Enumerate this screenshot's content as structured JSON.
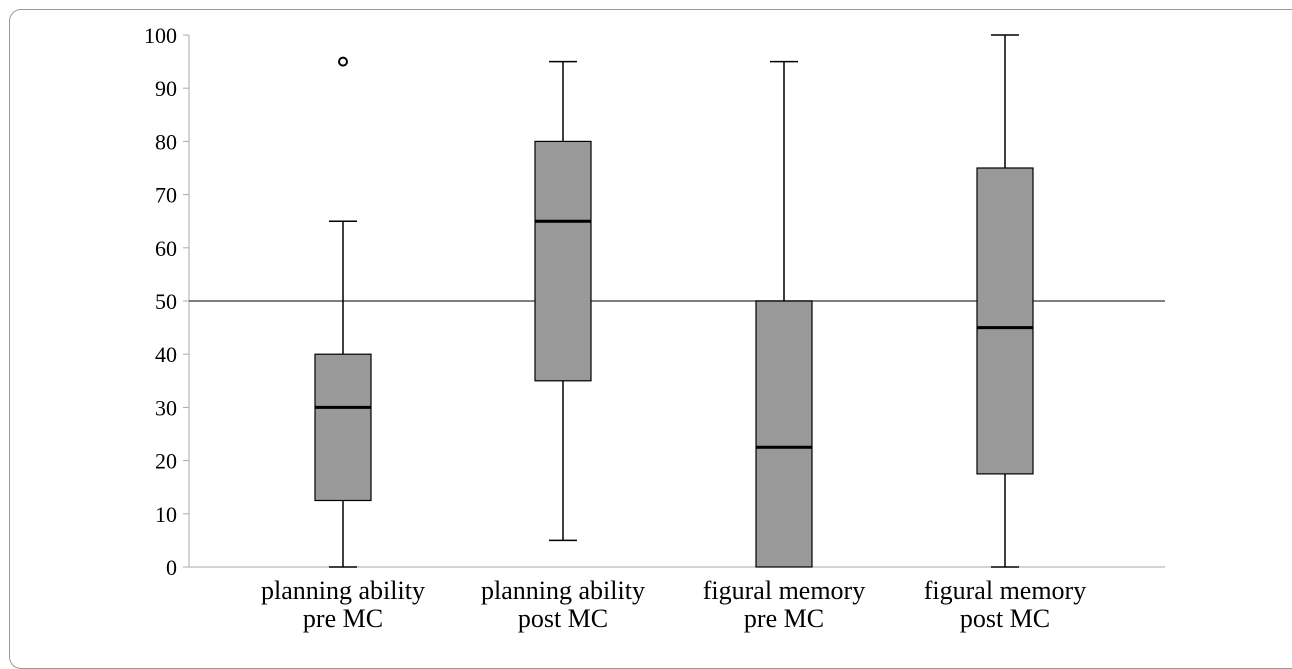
{
  "chart_data": {
    "type": "box",
    "title": "",
    "xlabel": "",
    "ylabel": "",
    "ylim": [
      0,
      100
    ],
    "y_ticks": [
      0,
      10,
      20,
      30,
      40,
      50,
      60,
      70,
      80,
      90,
      100
    ],
    "reference_line": 50,
    "grid": false,
    "box_color": "#999999",
    "categories": [
      [
        "planning ability",
        "pre MC"
      ],
      [
        "planning ability",
        "post MC"
      ],
      [
        "figural memory",
        "pre MC"
      ],
      [
        "figural memory",
        "post MC"
      ]
    ],
    "boxes": [
      {
        "min": 0,
        "q1": 12.5,
        "median": 30,
        "q3": 40,
        "max": 65,
        "outliers": [
          95
        ]
      },
      {
        "min": 5,
        "q1": 35,
        "median": 65,
        "q3": 80,
        "max": 95,
        "outliers": []
      },
      {
        "min": 0,
        "q1": 0,
        "median": 22.5,
        "q3": 50,
        "max": 95,
        "outliers": []
      },
      {
        "min": 0,
        "q1": 17.5,
        "median": 45,
        "q3": 75,
        "max": 100,
        "outliers": []
      }
    ]
  }
}
